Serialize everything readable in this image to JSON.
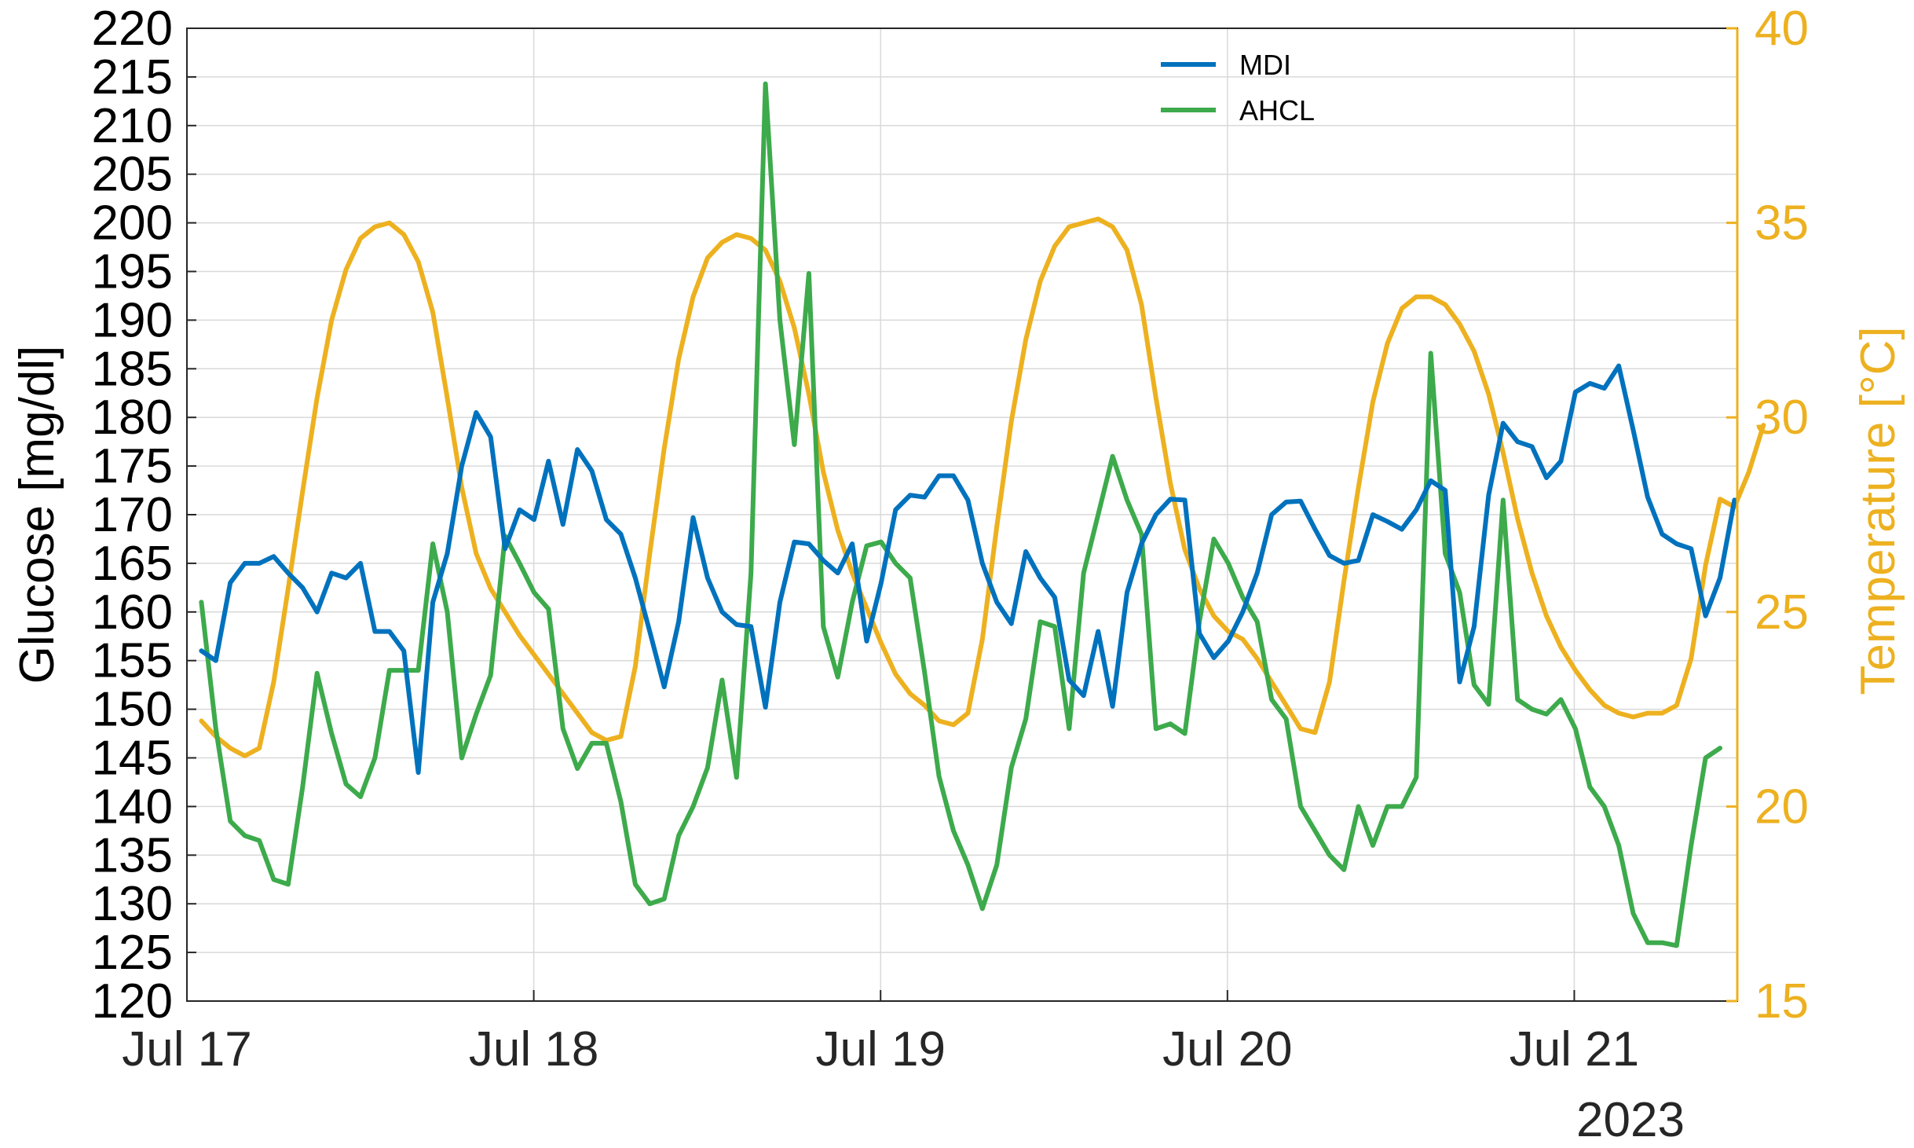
{
  "chart_data": {
    "type": "line",
    "title": "",
    "xlabel": "",
    "ylabel": "Glucose [mg/dl]",
    "y2label": "Temperature [°C]",
    "ylim": [
      120,
      220
    ],
    "y2lim": [
      15,
      40
    ],
    "xlim": [
      0,
      4.47
    ],
    "yticks": [
      "120",
      "125",
      "130",
      "135",
      "140",
      "145",
      "150",
      "155",
      "160",
      "165",
      "170",
      "175",
      "180",
      "185",
      "190",
      "195",
      "200",
      "205",
      "210",
      "215",
      "220"
    ],
    "y2ticks": [
      "15",
      "20",
      "25",
      "30",
      "35",
      "40"
    ],
    "xticks": [
      {
        "value": 0,
        "label": "Jul 17"
      },
      {
        "value": 1,
        "label": "Jul 18"
      },
      {
        "value": 2,
        "label": "Jul 19"
      },
      {
        "value": 3,
        "label": "Jul 20"
      },
      {
        "value": 4,
        "label": "Jul 21"
      }
    ],
    "x_secondary_label": "2023",
    "legend_position": "top-center",
    "grid": true,
    "colors": {
      "mdi": "#0072BD",
      "ahcl": "#3DAA4C",
      "temperature": "#EDB120"
    },
    "series": [
      {
        "name": "MDI",
        "axis": "left",
        "x_start": 0.0417,
        "x_step": 0.0417,
        "values": [
          156,
          155,
          163,
          165,
          165,
          165.7,
          164,
          162.5,
          160,
          164,
          163.5,
          165,
          158,
          158,
          156,
          143.5,
          161,
          166,
          175,
          180.5,
          178,
          166.5,
          170.5,
          169.5,
          175.5,
          169,
          176.7,
          174.5,
          169.5,
          168,
          163.5,
          158,
          152.3,
          159,
          169.7,
          163.5,
          160,
          158.7,
          158.5,
          150.2,
          161,
          167.2,
          167,
          165.3,
          164,
          167,
          157,
          163,
          170.5,
          172,
          171.8,
          174,
          174,
          171.5,
          165,
          161,
          158.8,
          166.2,
          163.5,
          161.5,
          153,
          151.4,
          158,
          150.3,
          162,
          167,
          170,
          171.6,
          171.5,
          157.8,
          155.3,
          157,
          160,
          164,
          170,
          171.3,
          171.4,
          168.5,
          165.8,
          165,
          165.3,
          170,
          169.3,
          168.5,
          170.5,
          173.5,
          172.5,
          152.8,
          158.5,
          172,
          179.4,
          177.5,
          177,
          173.8,
          175.5,
          182.6,
          183.5,
          183,
          185.3,
          178.7,
          171.8,
          168,
          167,
          166.5,
          159.6,
          163.5,
          171.5
        ]
      },
      {
        "name": "AHCL",
        "axis": "left",
        "x_start": 0.0417,
        "x_step": 0.0417,
        "values": [
          161,
          148,
          138.5,
          137,
          136.5,
          132.5,
          132,
          142,
          153.7,
          147.5,
          142.3,
          141,
          145,
          154,
          154,
          154,
          167,
          160,
          145,
          149.5,
          153.5,
          167.8,
          165,
          162,
          160.3,
          148,
          143.9,
          146.5,
          146.5,
          140.5,
          132,
          130,
          130.5,
          137,
          140,
          144,
          153,
          143,
          164,
          214.3,
          190,
          177.2,
          194.8,
          158.5,
          153.3,
          161,
          166.8,
          167.2,
          165,
          163.5,
          153.8,
          143.1,
          137.5,
          134,
          129.5,
          134,
          144,
          149,
          159,
          158.5,
          148,
          164,
          170,
          176,
          171.5,
          168,
          148,
          148.5,
          147.5,
          159,
          167.5,
          165,
          161.5,
          159,
          151,
          149,
          140,
          137.5,
          135,
          133.5,
          140,
          136,
          140,
          140,
          143,
          186.6,
          166,
          162,
          152.5,
          150.5,
          171.5,
          151,
          150,
          149.5,
          151,
          148,
          142,
          140,
          136,
          129,
          126,
          126,
          125.7,
          136,
          145,
          146
        ]
      },
      {
        "name": "Temperature",
        "axis": "right",
        "x_start": 0.0417,
        "x_step": 0.0417,
        "values": [
          22.2,
          21.8,
          21.5,
          21.3,
          21.5,
          23.2,
          25.6,
          28.1,
          30.5,
          32.5,
          33.8,
          34.6,
          34.9,
          35,
          34.7,
          34,
          32.7,
          30.5,
          28.2,
          26.5,
          25.6,
          25,
          24.4,
          23.9,
          23.4,
          22.9,
          22.4,
          21.9,
          21.7,
          21.8,
          23.6,
          26.5,
          29.2,
          31.5,
          33.1,
          34.1,
          34.5,
          34.7,
          34.6,
          34.3,
          33.5,
          32.3,
          30.6,
          28.6,
          27.1,
          26,
          25.1,
          24.2,
          23.4,
          22.9,
          22.6,
          22.2,
          22.1,
          22.4,
          24.3,
          27.2,
          29.9,
          32,
          33.5,
          34.4,
          34.9,
          35,
          35.1,
          34.9,
          34.3,
          32.9,
          30.5,
          28.3,
          26.6,
          25.6,
          24.9,
          24.5,
          24.3,
          23.8,
          23.2,
          22.6,
          22,
          21.9,
          23.2,
          25.8,
          28.2,
          30.4,
          31.9,
          32.8,
          33.1,
          33.1,
          32.9,
          32.4,
          31.7,
          30.6,
          29.1,
          27.4,
          26,
          24.9,
          24.1,
          23.5,
          23,
          22.6,
          22.4,
          22.3,
          22.4,
          22.4,
          22.6,
          23.8,
          26.2,
          27.9,
          27.7,
          28.6,
          29.8
        ]
      }
    ]
  }
}
